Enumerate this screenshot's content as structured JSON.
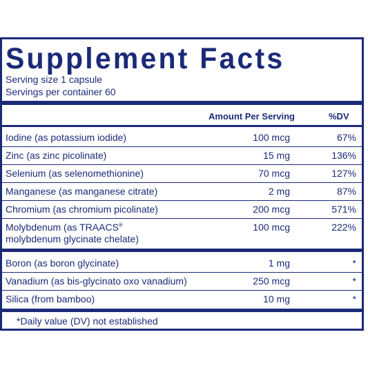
{
  "panel": {
    "title": "Supplement Facts",
    "serving_size": "Serving size  1 capsule",
    "servings_per_container": "Servings per container  60",
    "col_amount": "Amount Per Serving",
    "col_dv": "%DV",
    "rows_a": [
      {
        "name": "Iodine (as potassium iodide)",
        "amount": "100 mcg",
        "dv": "67%"
      },
      {
        "name": "Zinc (as zinc picolinate)",
        "amount": "15 mg",
        "dv": "136%"
      },
      {
        "name": "Selenium (as selenomethionine)",
        "amount": "70 mcg",
        "dv": "127%"
      },
      {
        "name": "Manganese (as manganese citrate)",
        "amount": "2 mg",
        "dv": "87%"
      },
      {
        "name": "Chromium (as chromium picolinate)",
        "amount": "200 mcg",
        "dv": "571%"
      }
    ],
    "moly": {
      "name_line1": "Molybdenum (as TRAACS",
      "reg_mark": "®",
      "name_line2": "molybdenum glycinate chelate)",
      "amount": "100 mcg",
      "dv": "222%"
    },
    "rows_b": [
      {
        "name": "Boron (as boron glycinate)",
        "amount": "1 mg",
        "dv": "*"
      },
      {
        "name": "Vanadium (as bis-glycinato oxo vanadium)",
        "amount": "250 mcg",
        "dv": "*"
      },
      {
        "name": "Silica (from bamboo)",
        "amount": "10 mg",
        "dv": "*"
      }
    ],
    "footnote": "*Daily value (DV) not established"
  },
  "colors": {
    "ink": "#1b2a78"
  }
}
